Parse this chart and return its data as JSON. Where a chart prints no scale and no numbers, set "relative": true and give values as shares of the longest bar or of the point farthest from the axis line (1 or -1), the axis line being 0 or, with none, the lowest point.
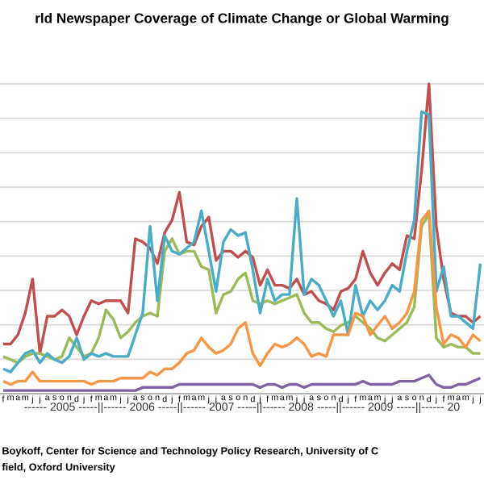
{
  "chart_data": {
    "type": "line",
    "title": "rld Newspaper Coverage of Climate Change or Global Warming",
    "xlabel": "------ 2005 -----||------ 2006 -----||------ 2007 -----||------ 2008 -----||------ 2009 -----||------ 20",
    "annotations": [
      "Boykoff, Center for Science and Technology Policy Research, University of C",
      "field, Oxford University"
    ],
    "categories": [
      "f",
      "m",
      "a",
      "m",
      "j",
      "j",
      "a",
      "s",
      "o",
      "n",
      "d",
      "j",
      "f",
      "m",
      "a",
      "m",
      "j",
      "j",
      "a",
      "s",
      "o",
      "n",
      "d",
      "j",
      "f",
      "m",
      "a",
      "m",
      "j",
      "j",
      "a",
      "s",
      "o",
      "n",
      "d",
      "j",
      "f",
      "m",
      "a",
      "m",
      "j",
      "j",
      "a",
      "s",
      "o",
      "n",
      "d",
      "j",
      "f",
      "m",
      "a",
      "m",
      "j",
      "j",
      "a",
      "s",
      "o",
      "n",
      "d",
      "j",
      "f",
      "m",
      "a",
      "m",
      "j",
      "j"
    ],
    "relative": true,
    "grid": "y",
    "line_style": "solid",
    "series": [
      {
        "color": "#c0504d",
        "values": [
          0.16,
          0.16,
          0.19,
          0.26,
          0.37,
          0.13,
          0.25,
          0.25,
          0.27,
          0.25,
          0.19,
          0.25,
          0.3,
          0.29,
          0.3,
          0.3,
          0.3,
          0.26,
          0.5,
          0.49,
          0.47,
          0.42,
          0.52,
          0.56,
          0.65,
          0.49,
          0.48,
          0.54,
          0.57,
          0.43,
          0.46,
          0.46,
          0.44,
          0.46,
          0.44,
          0.35,
          0.4,
          0.35,
          0.35,
          0.34,
          0.37,
          0.32,
          0.33,
          0.3,
          0.29,
          0.27,
          0.33,
          0.34,
          0.37,
          0.46,
          0.39,
          0.35,
          0.39,
          0.42,
          0.4,
          0.51,
          0.5,
          0.72,
          1,
          0.54,
          0.37,
          0.26,
          0.25,
          0.25,
          0.23,
          0.25
        ]
      },
      {
        "color": "#9bbb59",
        "values": [
          0.12,
          0.11,
          0.1,
          0.12,
          0.13,
          0.13,
          0.12,
          0.11,
          0.12,
          0.18,
          0.15,
          0.12,
          0.13,
          0.18,
          0.27,
          0.24,
          0.18,
          0.2,
          0.23,
          0.25,
          0.26,
          0.25,
          0.46,
          0.5,
          0.45,
          0.46,
          0.46,
          0.41,
          0.4,
          0.26,
          0.32,
          0.33,
          0.37,
          0.39,
          0.3,
          0.29,
          0.3,
          0.29,
          0.3,
          0.31,
          0.32,
          0.26,
          0.23,
          0.23,
          0.21,
          0.2,
          0.22,
          0.23,
          0.25,
          0.23,
          0.21,
          0.18,
          0.17,
          0.19,
          0.21,
          0.23,
          0.28,
          0.54,
          0.58,
          0.18,
          0.15,
          0.16,
          0.15,
          0.15,
          0.13,
          0.13
        ]
      },
      {
        "color": "#8064a2",
        "values": [
          0.01,
          0.01,
          0.01,
          0.01,
          0.01,
          0.01,
          0.01,
          0.01,
          0.01,
          0.01,
          0.01,
          0.01,
          0.01,
          0.01,
          0.01,
          0.01,
          0.01,
          0.01,
          0.01,
          0.02,
          0.02,
          0.02,
          0.02,
          0.02,
          0.03,
          0.03,
          0.03,
          0.03,
          0.03,
          0.03,
          0.03,
          0.03,
          0.03,
          0.03,
          0.03,
          0.02,
          0.03,
          0.03,
          0.02,
          0.03,
          0.03,
          0.02,
          0.03,
          0.03,
          0.03,
          0.03,
          0.03,
          0.03,
          0.03,
          0.04,
          0.03,
          0.03,
          0.03,
          0.03,
          0.04,
          0.04,
          0.04,
          0.05,
          0.06,
          0.03,
          0.02,
          0.02,
          0.03,
          0.03,
          0.04,
          0.05
        ]
      },
      {
        "color": "#4bacc6",
        "values": [
          0.08,
          0.07,
          0.1,
          0.13,
          0.14,
          0.1,
          0.13,
          0.11,
          0.1,
          0.12,
          0.18,
          0.11,
          0.13,
          0.12,
          0.13,
          0.12,
          0.12,
          0.12,
          0.19,
          0.26,
          0.54,
          0.3,
          0.51,
          0.46,
          0.45,
          0.47,
          0.49,
          0.59,
          0.46,
          0.33,
          0.49,
          0.53,
          0.51,
          0.52,
          0.4,
          0.26,
          0.37,
          0.3,
          0.32,
          0.32,
          0.63,
          0.32,
          0.37,
          0.35,
          0.3,
          0.25,
          0.3,
          0.19,
          0.35,
          0.25,
          0.3,
          0.27,
          0.3,
          0.35,
          0.33,
          0.46,
          0.56,
          0.91,
          0.9,
          0.33,
          0.41,
          0.25,
          0.25,
          0.23,
          0.21,
          0.42
        ]
      },
      {
        "color": "#f79646",
        "values": [
          0.04,
          0.03,
          0.04,
          0.04,
          0.07,
          0.04,
          0.04,
          0.04,
          0.04,
          0.04,
          0.04,
          0.04,
          0.03,
          0.04,
          0.04,
          0.04,
          0.05,
          0.05,
          0.05,
          0.05,
          0.07,
          0.06,
          0.08,
          0.08,
          0.1,
          0.13,
          0.14,
          0.18,
          0.15,
          0.13,
          0.14,
          0.16,
          0.21,
          0.23,
          0.13,
          0.09,
          0.13,
          0.16,
          0.15,
          0.16,
          0.18,
          0.16,
          0.12,
          0.13,
          0.12,
          0.19,
          0.19,
          0.19,
          0.26,
          0.25,
          0.19,
          0.22,
          0.25,
          0.21,
          0.23,
          0.26,
          0.33,
          0.56,
          0.59,
          0.28,
          0.16,
          0.19,
          0.18,
          0.15,
          0.19,
          0.17
        ]
      }
    ]
  }
}
